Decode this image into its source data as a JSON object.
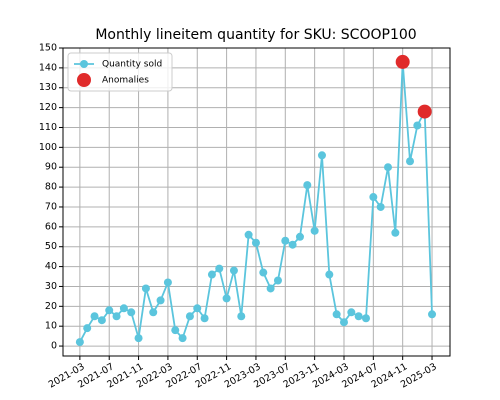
{
  "chart_data": {
    "type": "line",
    "title": "Monthly lineitem quantity for SKU: SCOOP100",
    "categories": [
      "2021-03",
      null,
      null,
      null,
      "2021-07",
      null,
      null,
      null,
      "2021-11",
      null,
      null,
      null,
      "2022-03",
      null,
      null,
      null,
      "2022-07",
      null,
      null,
      null,
      "2022-11",
      null,
      null,
      null,
      "2023-03",
      null,
      null,
      null,
      "2023-07",
      null,
      null,
      null,
      "2023-11",
      null,
      null,
      null,
      "2024-03",
      null,
      null,
      null,
      "2024-07",
      null,
      null,
      null,
      "2024-11",
      null,
      null,
      null,
      "2025-03"
    ],
    "series": [
      {
        "name": "Quantity sold",
        "color": "#5bc5dd",
        "values": [
          2,
          9,
          15,
          13,
          18,
          15,
          19,
          17,
          4,
          29,
          17,
          23,
          32,
          8,
          4,
          15,
          19,
          14,
          36,
          39,
          24,
          38,
          15,
          56,
          52,
          37,
          29,
          33,
          53,
          51,
          55,
          81,
          58,
          96,
          36,
          16,
          12,
          17,
          15,
          14,
          75,
          70,
          90,
          57,
          143,
          93,
          111,
          118,
          16
        ]
      },
      {
        "name": "Anomalies",
        "color": "#e02b2b",
        "values": [
          null,
          null,
          null,
          null,
          null,
          null,
          null,
          null,
          null,
          null,
          null,
          null,
          null,
          null,
          null,
          null,
          null,
          null,
          null,
          null,
          null,
          null,
          null,
          null,
          null,
          null,
          null,
          null,
          null,
          null,
          null,
          null,
          null,
          null,
          null,
          null,
          null,
          null,
          null,
          null,
          null,
          null,
          null,
          null,
          143,
          null,
          null,
          118,
          null
        ]
      }
    ],
    "ylim": [
      -5,
      150
    ],
    "yticks": [
      0,
      10,
      20,
      30,
      40,
      50,
      60,
      70,
      80,
      90,
      100,
      110,
      120,
      130,
      140,
      150
    ],
    "grid": true,
    "legend": "upper left"
  }
}
